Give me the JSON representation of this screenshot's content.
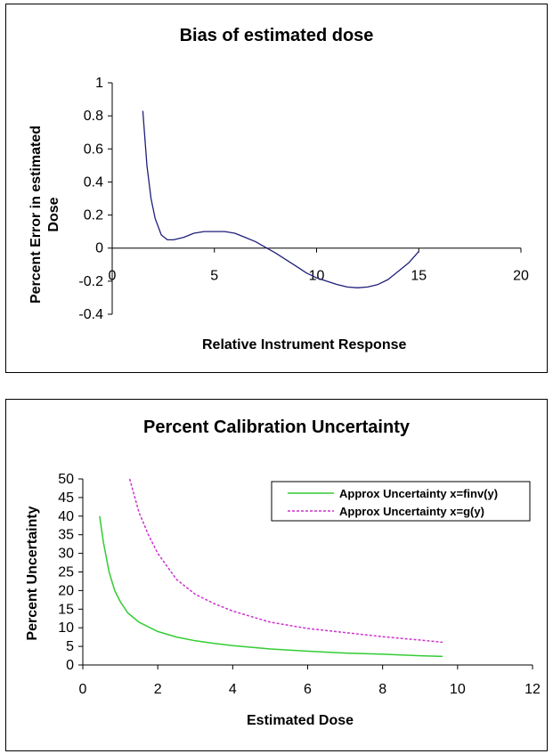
{
  "chart_data": [
    {
      "type": "line",
      "title": "Bias of estimated dose",
      "xlabel": "Relative Instrument Response",
      "ylabel": "Percent Error in estimated Dose",
      "xlim": [
        0,
        20
      ],
      "ylim": [
        -0.4,
        1
      ],
      "x_ticks": [
        "0",
        "5",
        "10",
        "15",
        "20"
      ],
      "y_ticks": [
        "1",
        "0.8",
        "0.6",
        "0.4",
        "0.2",
        "0",
        "-0.2",
        "-0.4"
      ],
      "grid": false,
      "legend": "none",
      "series": [
        {
          "color": "#1f1f7a",
          "x": [
            1.5,
            1.7,
            1.9,
            2.1,
            2.4,
            2.7,
            3.0,
            3.5,
            4.0,
            4.5,
            5.0,
            5.5,
            6.0,
            6.5,
            7.0,
            7.5,
            8.0,
            8.5,
            9.0,
            9.5,
            10.0,
            10.5,
            11.0,
            11.5,
            12.0,
            12.5,
            13.0,
            13.5,
            14.0,
            14.5,
            15.0
          ],
          "y": [
            0.83,
            0.5,
            0.3,
            0.18,
            0.08,
            0.05,
            0.05,
            0.065,
            0.09,
            0.1,
            0.1,
            0.1,
            0.09,
            0.065,
            0.04,
            0.005,
            -0.03,
            -0.07,
            -0.11,
            -0.15,
            -0.18,
            -0.2,
            -0.22,
            -0.235,
            -0.24,
            -0.235,
            -0.22,
            -0.19,
            -0.14,
            -0.09,
            -0.02
          ]
        }
      ]
    },
    {
      "type": "line",
      "title": "Percent Calibration Uncertainty",
      "xlabel": "Estimated Dose",
      "ylabel": "Percent Uncertainty",
      "xlim": [
        0,
        12
      ],
      "ylim": [
        0,
        50
      ],
      "x_ticks": [
        "0",
        "2",
        "4",
        "6",
        "8",
        "10",
        "12"
      ],
      "y_ticks": [
        "50",
        "45",
        "40",
        "35",
        "30",
        "25",
        "20",
        "15",
        "10",
        "5",
        "0"
      ],
      "grid": false,
      "legend": "top-right",
      "series": [
        {
          "name": "Approx Uncertainty x=finv(y)",
          "color": "#33cc33",
          "dash": "solid",
          "x": [
            0.45,
            0.55,
            0.7,
            0.85,
            1.0,
            1.2,
            1.5,
            2.0,
            2.5,
            3.0,
            3.5,
            4.0,
            5.0,
            6.0,
            7.0,
            8.0,
            9.0,
            9.6
          ],
          "y": [
            40,
            33,
            25,
            20,
            17,
            14,
            11.5,
            9,
            7.5,
            6.5,
            5.8,
            5.2,
            4.3,
            3.7,
            3.2,
            2.9,
            2.5,
            2.3
          ]
        },
        {
          "name": "Approx Uncertainty x=g(y)",
          "color": "#cc33cc",
          "dash": "dashed",
          "x": [
            1.25,
            1.5,
            1.75,
            2.0,
            2.5,
            3.0,
            3.5,
            4.0,
            4.5,
            5.0,
            6.0,
            7.0,
            8.0,
            9.0,
            9.6
          ],
          "y": [
            50,
            41,
            35,
            30,
            23,
            19,
            16.5,
            14.5,
            13,
            11.5,
            9.8,
            8.7,
            7.6,
            6.7,
            6.1
          ]
        }
      ]
    }
  ]
}
